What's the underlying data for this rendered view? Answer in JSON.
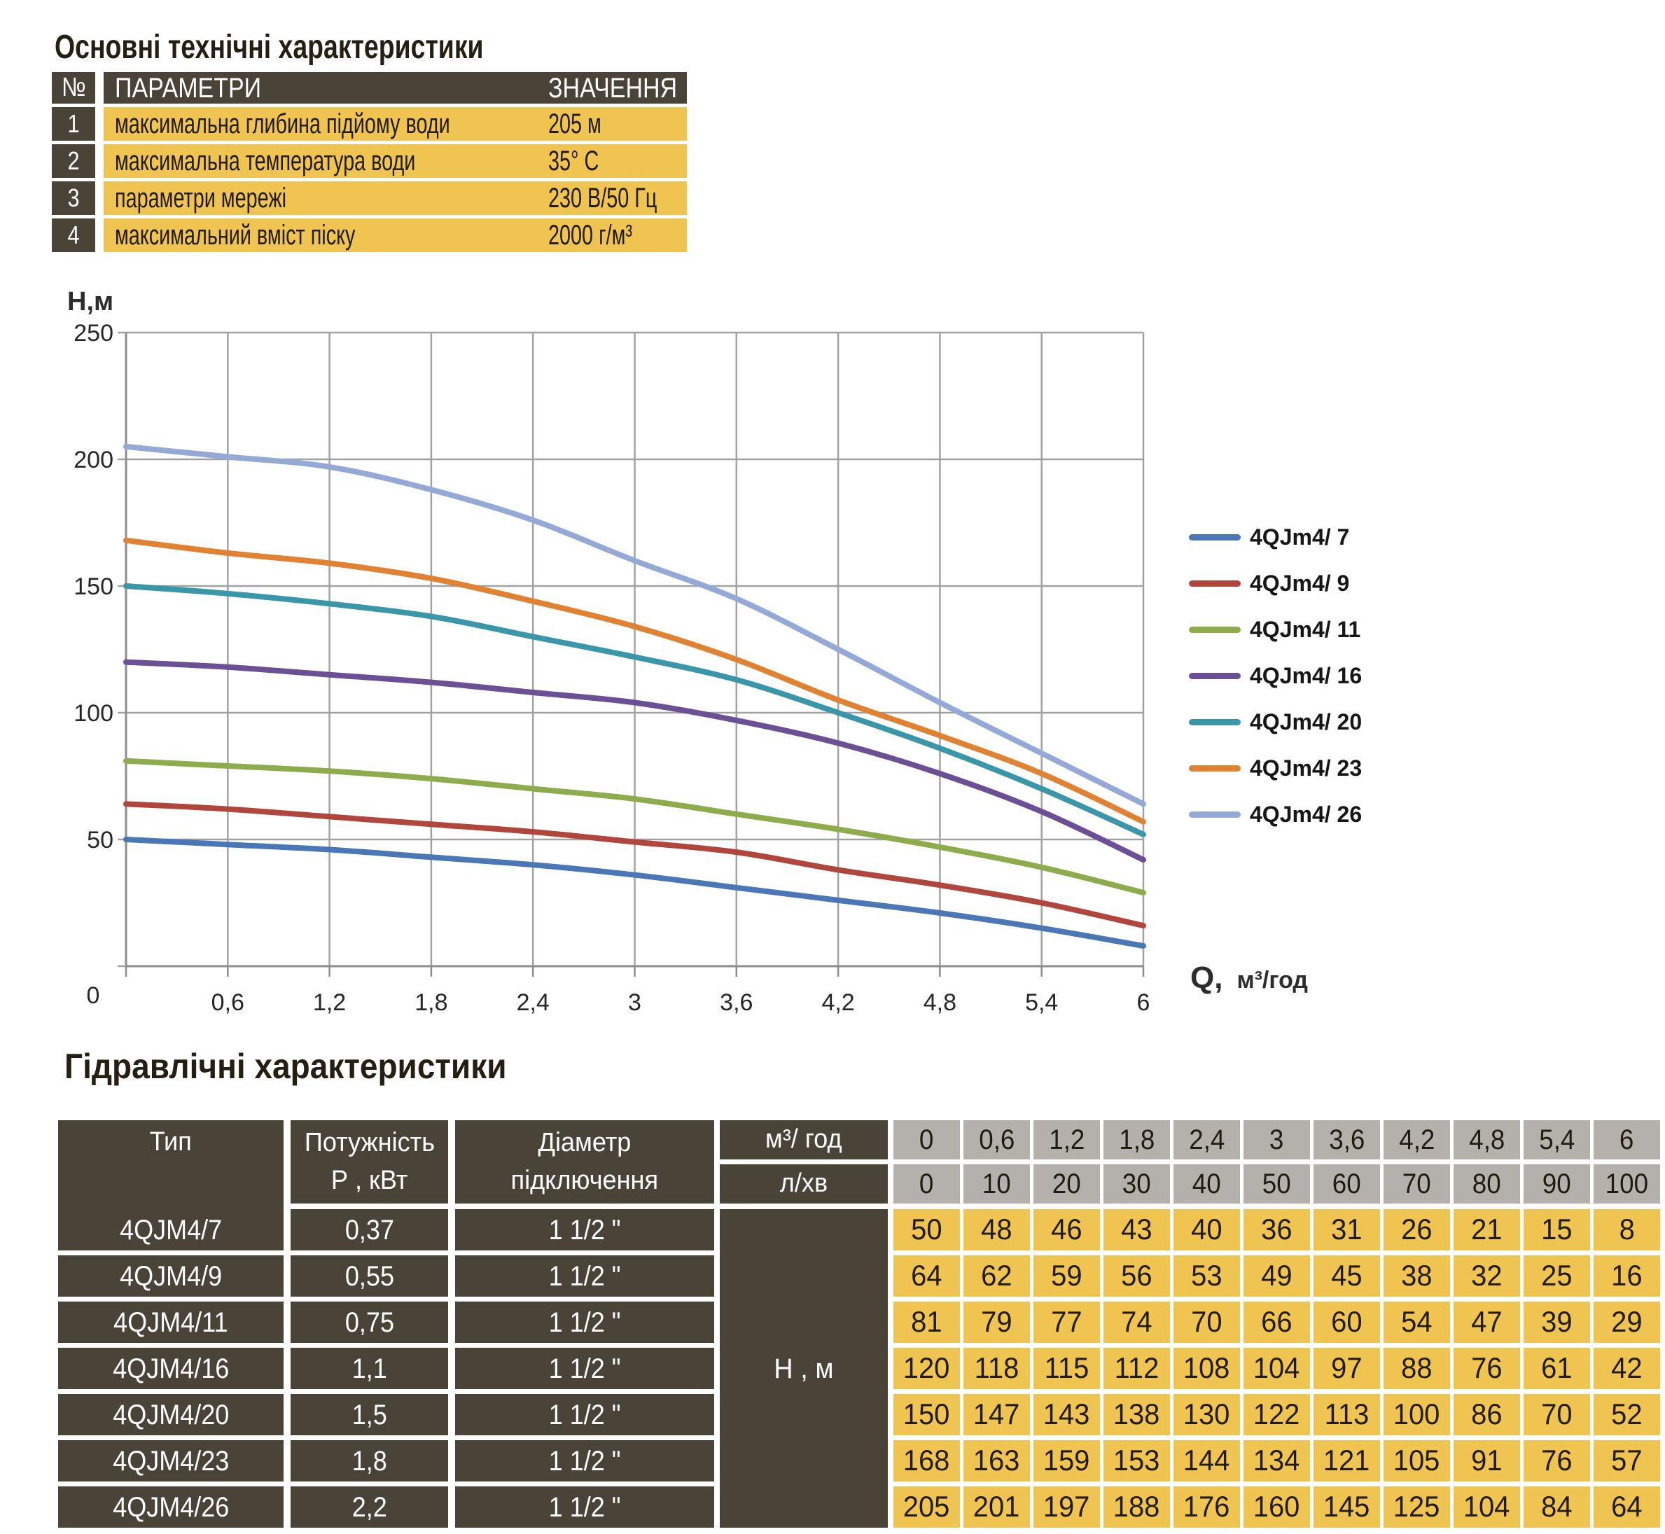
{
  "top": {
    "title": "Основні технічні характеристики",
    "table": {
      "headers": {
        "num": "№",
        "param": "ПАРАМЕТРИ",
        "value": "ЗНАЧЕННЯ"
      },
      "rows": [
        {
          "num": "1",
          "param": "максимальна глибина підйому води",
          "value": "205 м"
        },
        {
          "num": "2",
          "param": "максимальна температура води",
          "value": "35° С"
        },
        {
          "num": "3",
          "param": "параметри мережі",
          "value": "230 В/50 Гц"
        },
        {
          "num": "4",
          "param": "максимальний вміст піску",
          "value": "2000 г/м³"
        }
      ]
    }
  },
  "chart_data": {
    "type": "line",
    "x": [
      0,
      0.6,
      1.2,
      1.8,
      2.4,
      3,
      3.6,
      4.2,
      4.8,
      5.4,
      6
    ],
    "x_tick_labels": [
      "0,6",
      "1,2",
      "1,8",
      "2,4",
      "3",
      "3,6",
      "4,2",
      "4,8",
      "5,4",
      "6"
    ],
    "origin_label": "0",
    "y_ticks": [
      0,
      50,
      100,
      150,
      200,
      250
    ],
    "xlim": [
      0,
      6
    ],
    "ylim": [
      0,
      250
    ],
    "grid": true,
    "legend_position": "right",
    "y_axis_title": "Н,м",
    "x_axis_title": "Q,  м³/год",
    "series": [
      {
        "name": "4QJm4/ 7",
        "color": "#4a77b5",
        "values": [
          50,
          48,
          46,
          43,
          40,
          36,
          31,
          26,
          21,
          15,
          8
        ]
      },
      {
        "name": "4QJm4/ 9",
        "color": "#b1463d",
        "values": [
          64,
          62,
          59,
          56,
          53,
          49,
          45,
          38,
          32,
          25,
          16
        ]
      },
      {
        "name": "4QJm4/ 11",
        "color": "#8dad4c",
        "values": [
          81,
          79,
          77,
          74,
          70,
          66,
          60,
          54,
          47,
          39,
          29
        ]
      },
      {
        "name": "4QJm4/ 16",
        "color": "#6b5095",
        "values": [
          120,
          118,
          115,
          112,
          108,
          104,
          97,
          88,
          76,
          61,
          42
        ]
      },
      {
        "name": "4QJm4/ 20",
        "color": "#3a96a9",
        "values": [
          150,
          147,
          143,
          138,
          130,
          122,
          113,
          100,
          86,
          70,
          52
        ]
      },
      {
        "name": "4QJm4/ 23",
        "color": "#e08231",
        "values": [
          168,
          163,
          159,
          153,
          144,
          134,
          121,
          105,
          91,
          76,
          57
        ]
      },
      {
        "name": "4QJm4/ 26",
        "color": "#94a9d5",
        "values": [
          205,
          201,
          197,
          188,
          176,
          160,
          145,
          125,
          104,
          84,
          64
        ]
      }
    ]
  },
  "chart_labels": {
    "x_title_q": "Q,",
    "x_title_unit": "м³/год"
  },
  "bottom": {
    "title": "Гідравлічні характеристики",
    "table": {
      "type_header": "Тип",
      "power_header_line1": "Потужність",
      "power_header_line2": "Р , кВт",
      "diameter_header_line1": "Діаметр",
      "diameter_header_line2": "підключення",
      "flow_m3_label": "м³/ год",
      "flow_lmin_label": "л/хв",
      "head_label": "Н , м",
      "flow_m3_values": [
        "0",
        "0,6",
        "1,2",
        "1,8",
        "2,4",
        "3",
        "3,6",
        "4,2",
        "4,8",
        "5,4",
        "6"
      ],
      "flow_lmin_values": [
        "0",
        "10",
        "20",
        "30",
        "40",
        "50",
        "60",
        "70",
        "80",
        "90",
        "100"
      ],
      "rows": [
        {
          "type": "4QJM4/7",
          "power": "0,37",
          "diameter": "1 1/2 \"",
          "heads": [
            "50",
            "48",
            "46",
            "43",
            "40",
            "36",
            "31",
            "26",
            "21",
            "15",
            "8"
          ]
        },
        {
          "type": "4QJM4/9",
          "power": "0,55",
          "diameter": "1 1/2 \"",
          "heads": [
            "64",
            "62",
            "59",
            "56",
            "53",
            "49",
            "45",
            "38",
            "32",
            "25",
            "16"
          ]
        },
        {
          "type": "4QJM4/11",
          "power": "0,75",
          "diameter": "1 1/2 \"",
          "heads": [
            "81",
            "79",
            "77",
            "74",
            "70",
            "66",
            "60",
            "54",
            "47",
            "39",
            "29"
          ]
        },
        {
          "type": "4QJM4/16",
          "power": "1,1",
          "diameter": "1 1/2 \"",
          "heads": [
            "120",
            "118",
            "115",
            "112",
            "108",
            "104",
            "97",
            "88",
            "76",
            "61",
            "42"
          ]
        },
        {
          "type": "4QJM4/20",
          "power": "1,5",
          "diameter": "1 1/2 \"",
          "heads": [
            "150",
            "147",
            "143",
            "138",
            "130",
            "122",
            "113",
            "100",
            "86",
            "70",
            "52"
          ]
        },
        {
          "type": "4QJM4/23",
          "power": "1,8",
          "diameter": "1 1/2 \"",
          "heads": [
            "168",
            "163",
            "159",
            "153",
            "144",
            "134",
            "121",
            "105",
            "91",
            "76",
            "57"
          ]
        },
        {
          "type": "4QJM4/26",
          "power": "2,2",
          "diameter": "1 1/2 \"",
          "heads": [
            "205",
            "201",
            "197",
            "188",
            "176",
            "160",
            "145",
            "125",
            "104",
            "84",
            "64"
          ]
        }
      ]
    }
  },
  "colors": {
    "dark_cell": "#494338",
    "yellow_cell": "#f0c451",
    "gray_cell": "#b4b1ac",
    "grid_line": "#a2a2a2",
    "axis_line": "#8d8d8d",
    "tick_text": "#262626"
  }
}
